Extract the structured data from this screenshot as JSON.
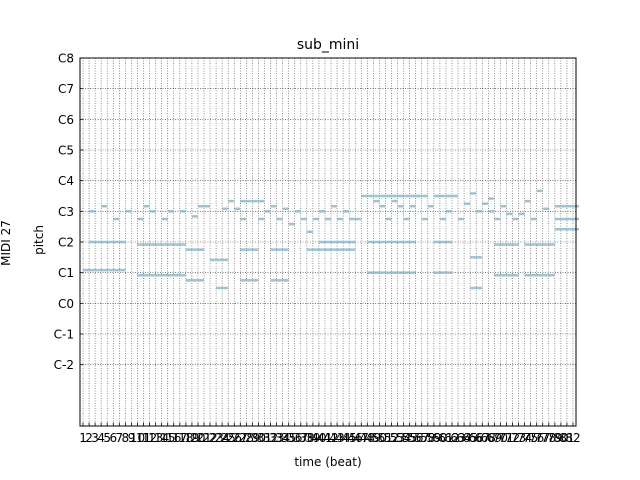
{
  "chart_data": {
    "type": "heatmap",
    "title": "sub_mini",
    "xlabel": "time (beat)",
    "ylabel": "pitch",
    "side_label": "MIDI 27",
    "ylim": [
      -24,
      120
    ],
    "xlim": [
      0.5,
      82.5
    ],
    "y_ticks": [
      {
        "value": 0,
        "label": "C-2"
      },
      {
        "value": 12,
        "label": "C-1"
      },
      {
        "value": 24,
        "label": "C0"
      },
      {
        "value": 36,
        "label": "C1"
      },
      {
        "value": 48,
        "label": "C2"
      },
      {
        "value": 60,
        "label": "C3"
      },
      {
        "value": 72,
        "label": "C4"
      },
      {
        "value": 84,
        "label": "C5"
      },
      {
        "value": 96,
        "label": "C6"
      },
      {
        "value": 108,
        "label": "C7"
      },
      {
        "value": 120,
        "label": "C8"
      }
    ],
    "x_tick_labels": [
      "1",
      "2",
      "3",
      "4",
      "5",
      "6",
      "7",
      "8",
      "9",
      "10",
      "11",
      "12",
      "13",
      "14",
      "15",
      "16",
      "17",
      "18",
      "19",
      "20",
      "21",
      "22",
      "23",
      "24",
      "25",
      "26",
      "27",
      "28",
      "29",
      "30",
      "31",
      "32",
      "33",
      "34",
      "35",
      "36",
      "37",
      "38",
      "39",
      "40",
      "41",
      "42",
      "43",
      "44",
      "45",
      "46",
      "47",
      "48",
      "49",
      "50",
      "51",
      "52",
      "53",
      "54",
      "55",
      "56",
      "57",
      "58",
      "59",
      "60",
      "61",
      "62",
      "63",
      "64",
      "65",
      "66",
      "67",
      "68",
      "69",
      "70",
      "71",
      "72",
      "73",
      "74",
      "75",
      "76",
      "77",
      "78",
      "79",
      "80",
      "81",
      "82"
    ],
    "grid": true,
    "note_color": "#8fb8cc",
    "notes": [
      {
        "start": 1,
        "end": 8,
        "pitch": 37
      },
      {
        "start": 2,
        "end": 8,
        "pitch": 48
      },
      {
        "start": 2,
        "end": 3,
        "pitch": 60
      },
      {
        "start": 4,
        "end": 5,
        "pitch": 62
      },
      {
        "start": 6,
        "end": 7,
        "pitch": 57
      },
      {
        "start": 8,
        "end": 9,
        "pitch": 60
      },
      {
        "start": 10,
        "end": 18,
        "pitch": 35
      },
      {
        "start": 10,
        "end": 18,
        "pitch": 47
      },
      {
        "start": 10,
        "end": 11,
        "pitch": 57
      },
      {
        "start": 11,
        "end": 12,
        "pitch": 62
      },
      {
        "start": 12,
        "end": 13,
        "pitch": 60
      },
      {
        "start": 14,
        "end": 15,
        "pitch": 57
      },
      {
        "start": 15,
        "end": 16,
        "pitch": 60
      },
      {
        "start": 17,
        "end": 18,
        "pitch": 60
      },
      {
        "start": 18,
        "end": 21,
        "pitch": 45
      },
      {
        "start": 18,
        "end": 21,
        "pitch": 33
      },
      {
        "start": 19,
        "end": 20,
        "pitch": 58
      },
      {
        "start": 20,
        "end": 22,
        "pitch": 62
      },
      {
        "start": 22,
        "end": 25,
        "pitch": 41
      },
      {
        "start": 23,
        "end": 25,
        "pitch": 30
      },
      {
        "start": 24,
        "end": 25,
        "pitch": 61
      },
      {
        "start": 25,
        "end": 26,
        "pitch": 64
      },
      {
        "start": 26,
        "end": 27,
        "pitch": 61
      },
      {
        "start": 27,
        "end": 29,
        "pitch": 64
      },
      {
        "start": 27,
        "end": 28,
        "pitch": 57
      },
      {
        "start": 27,
        "end": 30,
        "pitch": 45
      },
      {
        "start": 27,
        "end": 30,
        "pitch": 33
      },
      {
        "start": 29,
        "end": 31,
        "pitch": 64
      },
      {
        "start": 30,
        "end": 31,
        "pitch": 57
      },
      {
        "start": 31,
        "end": 32,
        "pitch": 60
      },
      {
        "start": 32,
        "end": 33,
        "pitch": 62
      },
      {
        "start": 33,
        "end": 34,
        "pitch": 57
      },
      {
        "start": 32,
        "end": 35,
        "pitch": 45
      },
      {
        "start": 32,
        "end": 35,
        "pitch": 33
      },
      {
        "start": 34,
        "end": 35,
        "pitch": 61
      },
      {
        "start": 35,
        "end": 36,
        "pitch": 55
      },
      {
        "start": 36,
        "end": 37,
        "pitch": 60
      },
      {
        "start": 37,
        "end": 38,
        "pitch": 57
      },
      {
        "start": 38,
        "end": 39,
        "pitch": 52
      },
      {
        "start": 38,
        "end": 46,
        "pitch": 45
      },
      {
        "start": 39,
        "end": 40,
        "pitch": 57
      },
      {
        "start": 40,
        "end": 41,
        "pitch": 60
      },
      {
        "start": 40,
        "end": 46,
        "pitch": 48
      },
      {
        "start": 41,
        "end": 42,
        "pitch": 57
      },
      {
        "start": 42,
        "end": 43,
        "pitch": 62
      },
      {
        "start": 43,
        "end": 44,
        "pitch": 57
      },
      {
        "start": 44,
        "end": 45,
        "pitch": 60
      },
      {
        "start": 45,
        "end": 47,
        "pitch": 57
      },
      {
        "start": 47,
        "end": 48,
        "pitch": 66
      },
      {
        "start": 48,
        "end": 56,
        "pitch": 66
      },
      {
        "start": 48,
        "end": 56,
        "pitch": 48
      },
      {
        "start": 48,
        "end": 56,
        "pitch": 36
      },
      {
        "start": 49,
        "end": 50,
        "pitch": 64
      },
      {
        "start": 50,
        "end": 51,
        "pitch": 62
      },
      {
        "start": 51,
        "end": 52,
        "pitch": 57
      },
      {
        "start": 52,
        "end": 53,
        "pitch": 64
      },
      {
        "start": 53,
        "end": 54,
        "pitch": 62
      },
      {
        "start": 54,
        "end": 55,
        "pitch": 57
      },
      {
        "start": 55,
        "end": 56,
        "pitch": 62
      },
      {
        "start": 56,
        "end": 58,
        "pitch": 66
      },
      {
        "start": 57,
        "end": 58,
        "pitch": 57
      },
      {
        "start": 58,
        "end": 59,
        "pitch": 62
      },
      {
        "start": 59,
        "end": 62,
        "pitch": 66
      },
      {
        "start": 59,
        "end": 62,
        "pitch": 48
      },
      {
        "start": 59,
        "end": 62,
        "pitch": 36
      },
      {
        "start": 60,
        "end": 61,
        "pitch": 57
      },
      {
        "start": 61,
        "end": 62,
        "pitch": 60
      },
      {
        "start": 62,
        "end": 63,
        "pitch": 66
      },
      {
        "start": 63,
        "end": 64,
        "pitch": 57
      },
      {
        "start": 64,
        "end": 65,
        "pitch": 63
      },
      {
        "start": 65,
        "end": 66,
        "pitch": 67
      },
      {
        "start": 65,
        "end": 67,
        "pitch": 42
      },
      {
        "start": 65,
        "end": 67,
        "pitch": 30
      },
      {
        "start": 66,
        "end": 67,
        "pitch": 60
      },
      {
        "start": 67,
        "end": 68,
        "pitch": 63
      },
      {
        "start": 68,
        "end": 69,
        "pitch": 60
      },
      {
        "start": 68,
        "end": 69,
        "pitch": 65
      },
      {
        "start": 69,
        "end": 70,
        "pitch": 57
      },
      {
        "start": 69,
        "end": 73,
        "pitch": 47
      },
      {
        "start": 69,
        "end": 73,
        "pitch": 35
      },
      {
        "start": 70,
        "end": 71,
        "pitch": 62
      },
      {
        "start": 71,
        "end": 72,
        "pitch": 59
      },
      {
        "start": 72,
        "end": 73,
        "pitch": 57
      },
      {
        "start": 73,
        "end": 74,
        "pitch": 59
      },
      {
        "start": 74,
        "end": 75,
        "pitch": 64
      },
      {
        "start": 74,
        "end": 79,
        "pitch": 47
      },
      {
        "start": 74,
        "end": 79,
        "pitch": 35
      },
      {
        "start": 75,
        "end": 76,
        "pitch": 57
      },
      {
        "start": 76,
        "end": 77,
        "pitch": 68
      },
      {
        "start": 77,
        "end": 78,
        "pitch": 61
      },
      {
        "start": 79,
        "end": 83,
        "pitch": 62
      },
      {
        "start": 79,
        "end": 83,
        "pitch": 57
      },
      {
        "start": 79,
        "end": 83,
        "pitch": 53
      }
    ]
  }
}
